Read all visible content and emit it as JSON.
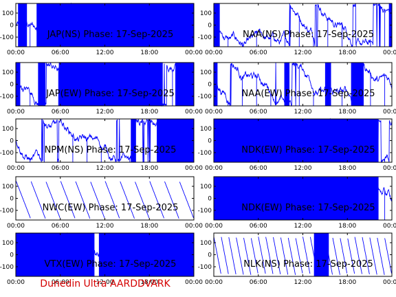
{
  "figure": {
    "credit": "Dunedin Ultra AARDDVARK",
    "colors": {
      "trace": "#0000ff",
      "axes": "#000000",
      "background": "#ffffff",
      "credit": "#d40000"
    }
  },
  "chart_data": [
    {
      "type": "line",
      "title": "JAP(NS) Phase: 17-Sep-2025",
      "xticks": [
        "00:00",
        "06:00",
        "12:00",
        "18:00",
        "00:00"
      ],
      "yticks": [
        "100",
        "0",
        "-100"
      ],
      "xlim": [
        0,
        24
      ],
      "ylim": [
        -180,
        180
      ],
      "fill": "dense",
      "dense_segments": [
        [
          0.3,
          1.5
        ],
        [
          2.8,
          24
        ]
      ]
    },
    {
      "type": "line",
      "title": "NAA(NS) Phase: 17-Sep-2025",
      "xticks": [
        "00:00",
        "06:00",
        "12:00",
        "18:00",
        "00:00"
      ],
      "yticks": [
        "100",
        "0",
        "-100"
      ],
      "xlim": [
        0,
        24
      ],
      "ylim": [
        -180,
        180
      ],
      "fill": "sparse",
      "dense_segments": [
        [
          0,
          0.8
        ],
        [
          23.6,
          24
        ]
      ]
    },
    {
      "type": "line",
      "title": "JAP(EW) Phase: 17-Sep-2025",
      "xticks": [
        "00:00",
        "06:00",
        "12:00",
        "18:00",
        "00:00"
      ],
      "yticks": [
        "100",
        "0",
        "-100"
      ],
      "xlim": [
        0,
        24
      ],
      "ylim": [
        -180,
        180
      ],
      "fill": "dense",
      "dense_segments": [
        [
          0,
          0.6
        ],
        [
          3.0,
          4.0
        ],
        [
          5.8,
          19.8
        ],
        [
          21.5,
          24
        ]
      ]
    },
    {
      "type": "line",
      "title": "NAA(EW) Phase: 17-Sep-2025",
      "xticks": [
        "00:00",
        "06:00",
        "12:00",
        "18:00",
        "00:00"
      ],
      "yticks": [
        "100",
        "0",
        "-100"
      ],
      "xlim": [
        0,
        24
      ],
      "ylim": [
        -180,
        180
      ],
      "fill": "sparse",
      "dense_segments": [
        [
          0,
          0.5
        ],
        [
          9.5,
          10.2
        ],
        [
          15.0,
          15.8
        ],
        [
          18.5,
          20.2
        ]
      ]
    },
    {
      "type": "line",
      "title": "NPM(NS) Phase: 17-Sep-2025",
      "xticks": [
        "00:00",
        "06:00",
        "12:00",
        "18:00",
        "00:00"
      ],
      "yticks": [
        "100",
        "0",
        "-100"
      ],
      "xlim": [
        0,
        24
      ],
      "ylim": [
        -180,
        180
      ],
      "fill": "sparse",
      "dense_segments": [
        [
          15.5,
          16.2
        ],
        [
          19.0,
          24
        ]
      ]
    },
    {
      "type": "line",
      "title": "NDK(EW) Phase: 17-Sep-2025",
      "xticks": [
        "00:00",
        "06:00",
        "12:00",
        "18:00",
        "00:00"
      ],
      "yticks": [
        "100",
        "0",
        "-100"
      ],
      "xlim": [
        0,
        24
      ],
      "ylim": [
        -180,
        180
      ],
      "fill": "dense",
      "dense_segments": [
        [
          0,
          22.2
        ]
      ]
    },
    {
      "type": "line",
      "title": "NWC(EW) Phase: 17-Sep-2025",
      "xticks": [
        "00:00",
        "06:00",
        "12:00",
        "18:00",
        "00:00"
      ],
      "yticks": [
        "100",
        "0",
        "-100"
      ],
      "xlim": [
        0,
        24
      ],
      "ylim": [
        -180,
        180
      ],
      "fill": "sawtooth",
      "dense_segments": []
    },
    {
      "type": "line",
      "title": "NDK(EW) Phase: 17-Sep-2025",
      "xticks": [
        "00:00",
        "06:00",
        "12:00",
        "18:00",
        "00:00"
      ],
      "yticks": [
        "100",
        "0",
        "-100"
      ],
      "xlim": [
        0,
        24
      ],
      "ylim": [
        -180,
        180
      ],
      "fill": "dense",
      "dense_segments": [
        [
          0,
          22.2
        ]
      ]
    },
    {
      "type": "line",
      "title": "VTX(EW) Phase: 17-Sep-2025",
      "xticks": [
        "00:00",
        "06:00",
        "12:00",
        "18:00",
        "00:00"
      ],
      "yticks": [
        "100",
        "0",
        "-100"
      ],
      "xlim": [
        0,
        24
      ],
      "ylim": [
        -180,
        180
      ],
      "fill": "dense",
      "dense_segments": [
        [
          0,
          10.6
        ],
        [
          11.2,
          24
        ]
      ]
    },
    {
      "type": "line",
      "title": "NLK(NS) Phase: 17-Sep-2025",
      "xticks": [
        "00:00",
        "06:00",
        "12:00",
        "18:00",
        "00:00"
      ],
      "yticks": [
        "100",
        "0",
        "-100"
      ],
      "xlim": [
        0,
        24
      ],
      "ylim": [
        -180,
        180
      ],
      "fill": "sawtooth",
      "dense_segments": [
        [
          13.5,
          15.5
        ]
      ]
    }
  ]
}
